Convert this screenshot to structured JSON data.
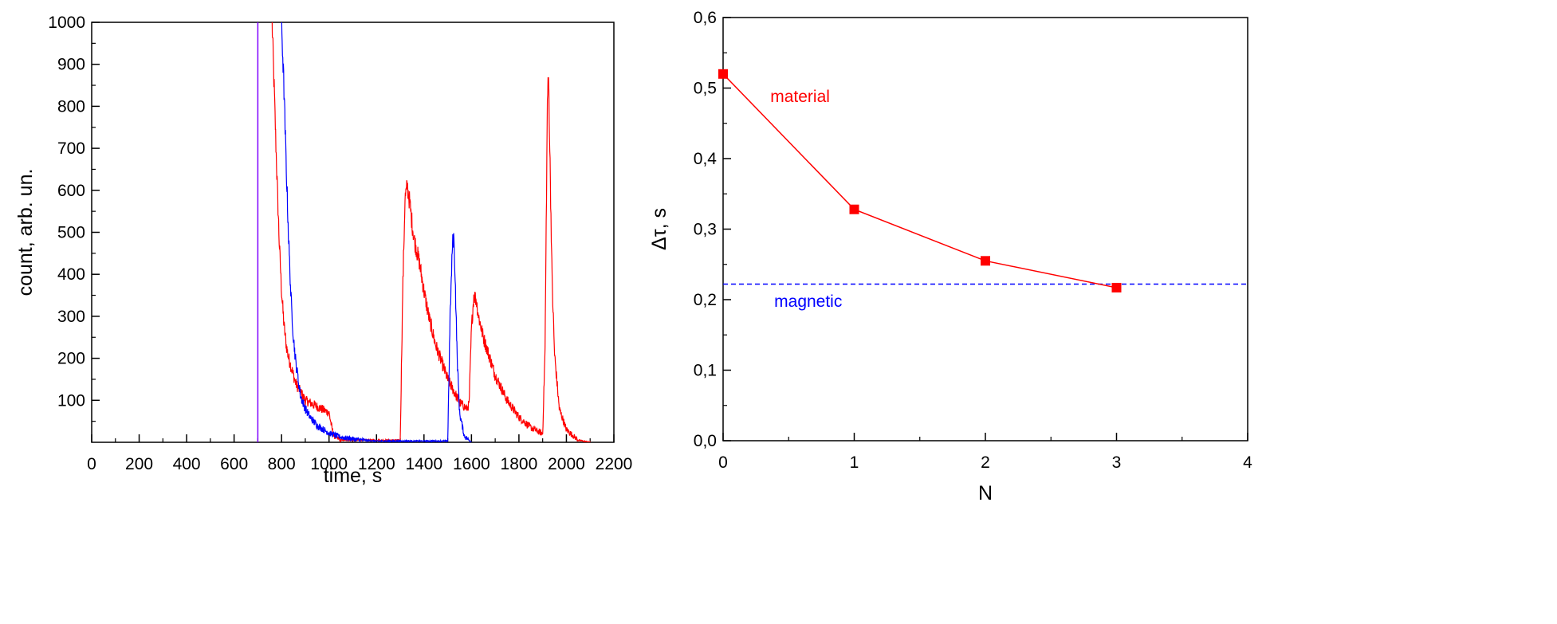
{
  "chart_data": [
    {
      "type": "line",
      "xlabel": "time, s",
      "ylabel": "count, arb. un.",
      "xlim": [
        0,
        2200
      ],
      "ylim": [
        0,
        1000
      ],
      "xticks": [
        "0",
        "200",
        "400",
        "600",
        "800",
        "1000",
        "1200",
        "1400",
        "1600",
        "1800",
        "2000",
        "2200"
      ],
      "yticks": [
        "100",
        "200",
        "300",
        "400",
        "500",
        "600",
        "700",
        "800",
        "900",
        "1000"
      ],
      "grid": false,
      "colors": {
        "red": "#ff0000",
        "blue": "#0000ff",
        "marker": "#7f00ff"
      },
      "marker_line_x": 700,
      "series": [
        {
          "color": "#ff0000",
          "x": [
            760,
            770,
            780,
            790,
            800,
            810,
            820,
            830,
            840,
            850,
            860,
            880,
            900,
            950,
            1000,
            1010,
            1020,
            1050,
            1300,
            1310,
            1320,
            1330,
            1340,
            1350,
            1360,
            1380,
            1400,
            1420,
            1450,
            1500,
            1550,
            1580,
            1590,
            1600,
            1610,
            1620,
            1630,
            1650,
            1700,
            1750,
            1800,
            1850,
            1900,
            1910,
            1920,
            1925,
            1930,
            1940,
            1950,
            1970,
            2000,
            2050,
            2100
          ],
          "y": [
            1000,
            820,
            640,
            480,
            360,
            280,
            230,
            200,
            180,
            160,
            140,
            120,
            100,
            85,
            70,
            40,
            15,
            5,
            5,
            350,
            580,
            610,
            570,
            520,
            480,
            430,
            360,
            300,
            230,
            150,
            95,
            80,
            90,
            270,
            350,
            340,
            300,
            250,
            160,
            100,
            60,
            35,
            20,
            220,
            820,
            870,
            700,
            380,
            210,
            80,
            30,
            5,
            0
          ]
        },
        {
          "color": "#0000ff",
          "x": [
            800,
            810,
            820,
            830,
            840,
            850,
            860,
            870,
            880,
            900,
            920,
            950,
            1000,
            1050,
            1100,
            1150,
            1200,
            1500,
            1510,
            1520,
            1525,
            1530,
            1540,
            1550,
            1570,
            1600
          ],
          "y": [
            1000,
            840,
            650,
            480,
            340,
            250,
            190,
            150,
            110,
            80,
            60,
            40,
            22,
            12,
            8,
            5,
            3,
            3,
            300,
            470,
            490,
            420,
            200,
            70,
            15,
            0
          ]
        }
      ]
    },
    {
      "type": "line",
      "xlabel": "N",
      "ylabel": "Δτ, s",
      "xlim": [
        0,
        4
      ],
      "ylim": [
        0,
        0.6
      ],
      "xticks": [
        "0",
        "1",
        "2",
        "3",
        "4"
      ],
      "yticks": [
        "0,0",
        "0,1",
        "0,2",
        "0,3",
        "0,4",
        "0,5",
        "0,6"
      ],
      "grid": false,
      "series": [
        {
          "name": "material",
          "color": "#ff0000",
          "marker": "square",
          "x": [
            0,
            1,
            2,
            3
          ],
          "y": [
            0.52,
            0.328,
            0.255,
            0.217
          ]
        },
        {
          "name": "magnetic",
          "color": "#0000ff",
          "style": "dashed",
          "x": [
            0,
            4
          ],
          "y": [
            0.222,
            0.222
          ]
        }
      ],
      "annotations": [
        {
          "text": "material",
          "color": "#ff0000"
        },
        {
          "text": "magnetic",
          "color": "#0000ff"
        }
      ]
    }
  ]
}
